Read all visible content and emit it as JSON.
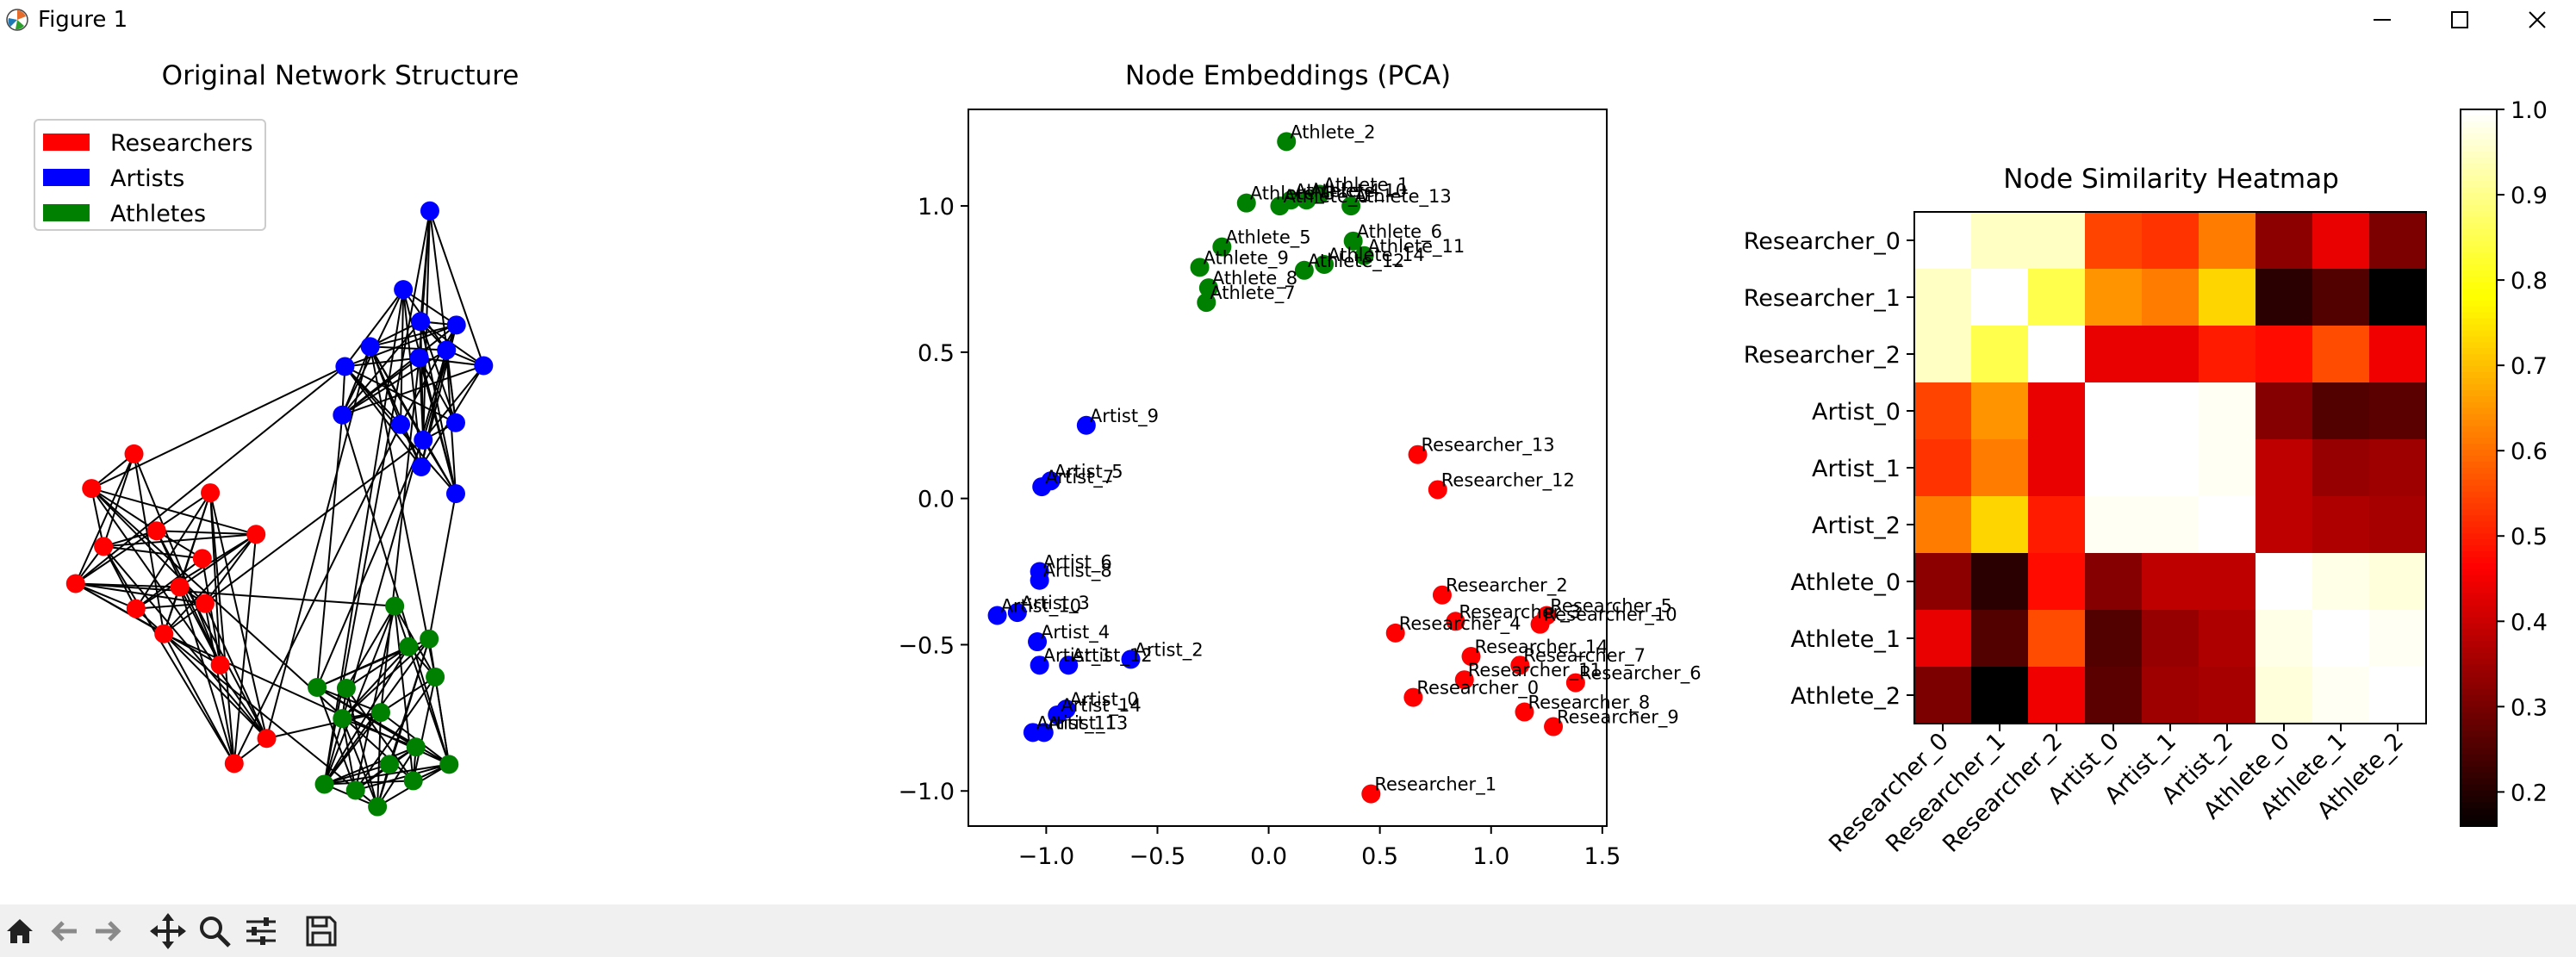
{
  "window": {
    "title": "Figure 1",
    "app_icon": "matplotlib-icon",
    "controls": [
      "minimize-icon",
      "maximize-icon",
      "close-icon"
    ]
  },
  "toolbar": {
    "buttons": [
      "home-icon",
      "back-arrow-icon",
      "forward-arrow-icon",
      "pan-move-icon",
      "zoom-magnifier-icon",
      "configure-subplots-icon",
      "save-disk-icon"
    ]
  },
  "chart_data": [
    {
      "type": "network",
      "title": "Original Network Structure",
      "legend": {
        "placement": "top-left",
        "entries": [
          {
            "label": "Researchers",
            "color": "#ff0000"
          },
          {
            "label": "Artists",
            "color": "#0000ff"
          },
          {
            "label": "Athletes",
            "color": "#008000"
          }
        ]
      },
      "node_colors": {
        "Researchers": "#ff0000",
        "Artists": "#0000ff",
        "Athletes": "#008000"
      },
      "nodes": [
        {
          "group": "Researchers",
          "x": 0.179,
          "y": 0.658
        },
        {
          "group": "Researchers",
          "x": 0.245,
          "y": 0.633
        },
        {
          "group": "Researchers",
          "x": 0.306,
          "y": 0.723
        },
        {
          "group": "Researchers",
          "x": 0.13,
          "y": 0.586
        },
        {
          "group": "Researchers",
          "x": 0.279,
          "y": 0.6
        },
        {
          "group": "Researchers",
          "x": 0.36,
          "y": 0.572
        },
        {
          "group": "Researchers",
          "x": 0.21,
          "y": 0.568
        },
        {
          "group": "Researchers",
          "x": 0.291,
          "y": 0.524
        },
        {
          "group": "Researchers",
          "x": 0.112,
          "y": 0.519
        },
        {
          "group": "Researchers",
          "x": 0.176,
          "y": 0.479
        },
        {
          "group": "Researchers",
          "x": 0.088,
          "y": 0.629
        },
        {
          "group": "Researchers",
          "x": 0.221,
          "y": 0.687
        },
        {
          "group": "Researchers",
          "x": 0.376,
          "y": 0.808
        },
        {
          "group": "Researchers",
          "x": 0.327,
          "y": 0.837
        },
        {
          "group": "Researchers",
          "x": 0.283,
          "y": 0.652
        },
        {
          "group": "Artists",
          "x": 0.622,
          "y": 0.198
        },
        {
          "group": "Artists",
          "x": 0.582,
          "y": 0.289
        },
        {
          "group": "Artists",
          "x": 0.532,
          "y": 0.355
        },
        {
          "group": "Artists",
          "x": 0.608,
          "y": 0.326
        },
        {
          "group": "Artists",
          "x": 0.662,
          "y": 0.33
        },
        {
          "group": "Artists",
          "x": 0.647,
          "y": 0.359
        },
        {
          "group": "Artists",
          "x": 0.703,
          "y": 0.377
        },
        {
          "group": "Artists",
          "x": 0.494,
          "y": 0.378
        },
        {
          "group": "Artists",
          "x": 0.606,
          "y": 0.368
        },
        {
          "group": "Artists",
          "x": 0.661,
          "y": 0.443
        },
        {
          "group": "Artists",
          "x": 0.578,
          "y": 0.445
        },
        {
          "group": "Artists",
          "x": 0.49,
          "y": 0.434
        },
        {
          "group": "Artists",
          "x": 0.612,
          "y": 0.463
        },
        {
          "group": "Artists",
          "x": 0.609,
          "y": 0.494
        },
        {
          "group": "Artists",
          "x": 0.661,
          "y": 0.525
        },
        {
          "group": "Athletes",
          "x": 0.569,
          "y": 0.655
        },
        {
          "group": "Athletes",
          "x": 0.621,
          "y": 0.693
        },
        {
          "group": "Athletes",
          "x": 0.59,
          "y": 0.702
        },
        {
          "group": "Athletes",
          "x": 0.63,
          "y": 0.737
        },
        {
          "group": "Athletes",
          "x": 0.496,
          "y": 0.75
        },
        {
          "group": "Athletes",
          "x": 0.452,
          "y": 0.749
        },
        {
          "group": "Athletes",
          "x": 0.548,
          "y": 0.778
        },
        {
          "group": "Athletes",
          "x": 0.49,
          "y": 0.785
        },
        {
          "group": "Athletes",
          "x": 0.601,
          "y": 0.818
        },
        {
          "group": "Athletes",
          "x": 0.561,
          "y": 0.838
        },
        {
          "group": "Athletes",
          "x": 0.651,
          "y": 0.838
        },
        {
          "group": "Athletes",
          "x": 0.597,
          "y": 0.857
        },
        {
          "group": "Athletes",
          "x": 0.463,
          "y": 0.861
        },
        {
          "group": "Athletes",
          "x": 0.51,
          "y": 0.868
        },
        {
          "group": "Athletes",
          "x": 0.543,
          "y": 0.887
        }
      ]
    },
    {
      "type": "scatter",
      "title": "Node Embeddings (PCA)",
      "xlim": [
        -1.35,
        1.52
      ],
      "ylim": [
        -1.12,
        1.33
      ],
      "xticks": [
        -1.0,
        -0.5,
        0.0,
        0.5,
        1.0,
        1.5
      ],
      "xtick_labels": [
        "−1.0",
        "−0.5",
        "0.0",
        "0.5",
        "1.0",
        "1.5"
      ],
      "yticks": [
        -1.0,
        -0.5,
        0.0,
        0.5,
        1.0
      ],
      "ytick_labels": [
        "−1.0",
        "−0.5",
        "0.0",
        "0.5",
        "1.0"
      ],
      "colors": {
        "Researcher": "#ff0000",
        "Artist": "#0000ff",
        "Athlete": "#008000"
      },
      "points": [
        {
          "label": "Athlete_2",
          "group": "Athlete",
          "x": 0.08,
          "y": 1.22
        },
        {
          "label": "Athlete_1",
          "group": "Athlete",
          "x": 0.23,
          "y": 1.04
        },
        {
          "label": "Athlete_13",
          "group": "Athlete",
          "x": 0.37,
          "y": 1.0
        },
        {
          "label": "Athlete_3",
          "group": "Athlete",
          "x": -0.1,
          "y": 1.01
        },
        {
          "label": "Athlete_0",
          "group": "Athlete",
          "x": 0.05,
          "y": 1.0
        },
        {
          "label": "Athlete_4",
          "group": "Athlete",
          "x": 0.1,
          "y": 1.02
        },
        {
          "label": "Athlete_10",
          "group": "Athlete",
          "x": 0.17,
          "y": 1.02
        },
        {
          "label": "Athlete_5",
          "group": "Athlete",
          "x": -0.21,
          "y": 0.86
        },
        {
          "label": "Athlete_6",
          "group": "Athlete",
          "x": 0.38,
          "y": 0.88
        },
        {
          "label": "Athlete_11",
          "group": "Athlete",
          "x": 0.43,
          "y": 0.83
        },
        {
          "label": "Athlete_14",
          "group": "Athlete",
          "x": 0.25,
          "y": 0.8
        },
        {
          "label": "Athlete_12",
          "group": "Athlete",
          "x": 0.16,
          "y": 0.78
        },
        {
          "label": "Athlete_9",
          "group": "Athlete",
          "x": -0.31,
          "y": 0.79
        },
        {
          "label": "Athlete_8",
          "group": "Athlete",
          "x": -0.27,
          "y": 0.72
        },
        {
          "label": "Athlete_7",
          "group": "Athlete",
          "x": -0.28,
          "y": 0.67
        },
        {
          "label": "Artist_9",
          "group": "Artist",
          "x": -0.82,
          "y": 0.25
        },
        {
          "label": "Artist_5",
          "group": "Artist",
          "x": -0.98,
          "y": 0.06
        },
        {
          "label": "Artist_7",
          "group": "Artist",
          "x": -1.02,
          "y": 0.04
        },
        {
          "label": "Artist_6",
          "group": "Artist",
          "x": -1.03,
          "y": -0.25
        },
        {
          "label": "Artist_8",
          "group": "Artist",
          "x": -1.03,
          "y": -0.28
        },
        {
          "label": "Artist_3",
          "group": "Artist",
          "x": -1.13,
          "y": -0.39
        },
        {
          "label": "Artist_10",
          "group": "Artist",
          "x": -1.22,
          "y": -0.4
        },
        {
          "label": "Artist_4",
          "group": "Artist",
          "x": -1.04,
          "y": -0.49
        },
        {
          "label": "Artist_2",
          "group": "Artist",
          "x": -0.62,
          "y": -0.55
        },
        {
          "label": "Artist_12",
          "group": "Artist",
          "x": -0.9,
          "y": -0.57
        },
        {
          "label": "Artist_1",
          "group": "Artist",
          "x": -1.03,
          "y": -0.57
        },
        {
          "label": "Artist_0",
          "group": "Artist",
          "x": -0.91,
          "y": -0.72
        },
        {
          "label": "Artist_14",
          "group": "Artist",
          "x": -0.95,
          "y": -0.74
        },
        {
          "label": "Artist_11",
          "group": "Artist",
          "x": -1.06,
          "y": -0.8
        },
        {
          "label": "Artist_13",
          "group": "Artist",
          "x": -1.01,
          "y": -0.8
        },
        {
          "label": "Researcher_13",
          "group": "Researcher",
          "x": 0.67,
          "y": 0.15
        },
        {
          "label": "Researcher_12",
          "group": "Researcher",
          "x": 0.76,
          "y": 0.03
        },
        {
          "label": "Researcher_2",
          "group": "Researcher",
          "x": 0.78,
          "y": -0.33
        },
        {
          "label": "Researcher_5",
          "group": "Researcher",
          "x": 1.25,
          "y": -0.4
        },
        {
          "label": "Researcher_10",
          "group": "Researcher",
          "x": 1.22,
          "y": -0.43
        },
        {
          "label": "Researcher_3",
          "group": "Researcher",
          "x": 0.84,
          "y": -0.42
        },
        {
          "label": "Researcher_4",
          "group": "Researcher",
          "x": 0.57,
          "y": -0.46
        },
        {
          "label": "Researcher_14",
          "group": "Researcher",
          "x": 0.91,
          "y": -0.54
        },
        {
          "label": "Researcher_7",
          "group": "Researcher",
          "x": 1.13,
          "y": -0.57
        },
        {
          "label": "Researcher_11",
          "group": "Researcher",
          "x": 0.88,
          "y": -0.62
        },
        {
          "label": "Researcher_6",
          "group": "Researcher",
          "x": 1.38,
          "y": -0.63
        },
        {
          "label": "Researcher_0",
          "group": "Researcher",
          "x": 0.65,
          "y": -0.68
        },
        {
          "label": "Researcher_8",
          "group": "Researcher",
          "x": 1.15,
          "y": -0.73
        },
        {
          "label": "Researcher_9",
          "group": "Researcher",
          "x": 1.28,
          "y": -0.78
        },
        {
          "label": "Researcher_1",
          "group": "Researcher",
          "x": 0.46,
          "y": -1.01
        }
      ]
    },
    {
      "type": "heatmap",
      "title": "Node Similarity Heatmap",
      "colormap": "hot",
      "rows": [
        "Researcher_0",
        "Researcher_1",
        "Researcher_2",
        "Artist_0",
        "Artist_1",
        "Artist_2",
        "Athlete_0",
        "Athlete_1",
        "Athlete_2"
      ],
      "columns": [
        "Researcher_0",
        "Researcher_1",
        "Researcher_2",
        "Artist_0",
        "Artist_1",
        "Artist_2",
        "Athlete_0",
        "Athlete_1",
        "Athlete_2"
      ],
      "values": [
        [
          1.0,
          0.95,
          0.95,
          0.55,
          0.53,
          0.62,
          0.33,
          0.44,
          0.31
        ],
        [
          0.95,
          1.0,
          0.85,
          0.65,
          0.62,
          0.73,
          0.21,
          0.26,
          0.16
        ],
        [
          0.95,
          0.85,
          1.0,
          0.44,
          0.44,
          0.5,
          0.48,
          0.56,
          0.45
        ],
        [
          0.55,
          0.65,
          0.44,
          1.0,
          1.0,
          0.99,
          0.32,
          0.26,
          0.27
        ],
        [
          0.53,
          0.62,
          0.44,
          1.0,
          1.0,
          0.99,
          0.39,
          0.34,
          0.35
        ],
        [
          0.62,
          0.73,
          0.5,
          0.99,
          0.99,
          1.0,
          0.39,
          0.37,
          0.36
        ],
        [
          0.33,
          0.21,
          0.48,
          0.32,
          0.39,
          0.39,
          1.0,
          0.98,
          0.97
        ],
        [
          0.44,
          0.26,
          0.56,
          0.26,
          0.34,
          0.37,
          0.98,
          1.0,
          0.99
        ],
        [
          0.31,
          0.16,
          0.45,
          0.27,
          0.35,
          0.36,
          0.97,
          0.99,
          1.0
        ]
      ],
      "colorbar": {
        "range": [
          0.16,
          1.0
        ],
        "ticks": [
          0.2,
          0.3,
          0.4,
          0.5,
          0.6,
          0.7,
          0.8,
          0.9,
          1.0
        ],
        "tick_labels": [
          "0.2",
          "0.3",
          "0.4",
          "0.5",
          "0.6",
          "0.7",
          "0.8",
          "0.9",
          "1.0"
        ]
      }
    }
  ]
}
